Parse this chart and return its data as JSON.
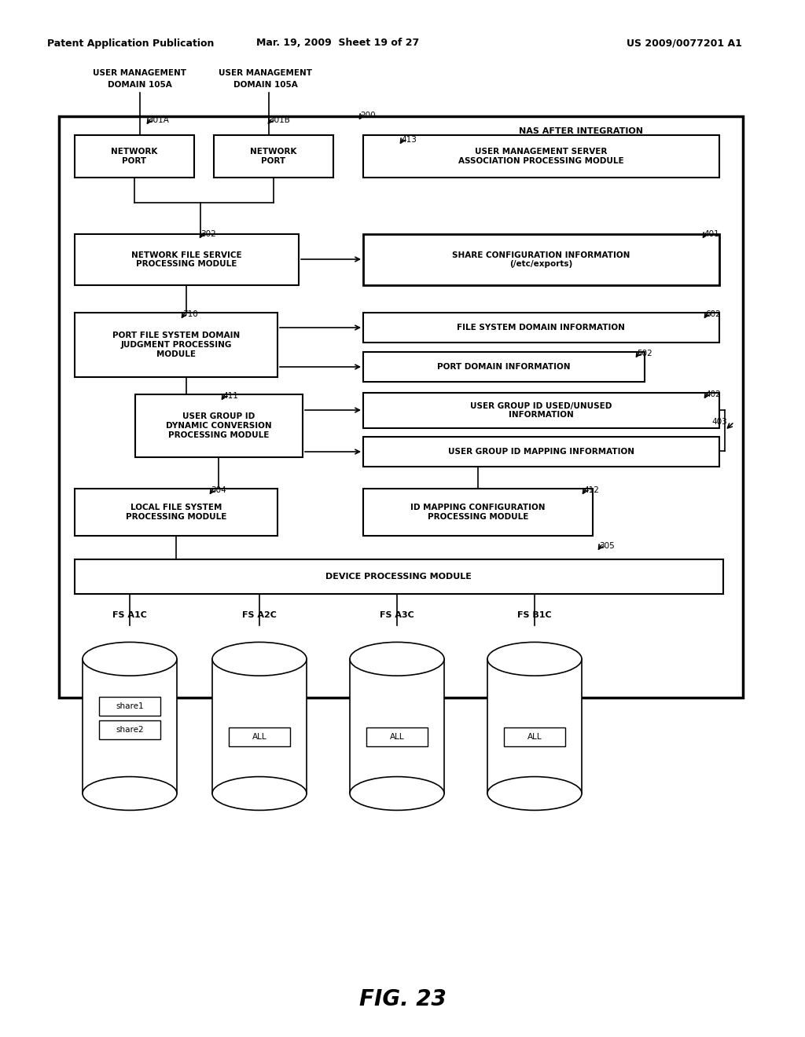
{
  "header_left": "Patent Application Publication",
  "header_mid": "Mar. 19, 2009  Sheet 19 of 27",
  "header_right": "US 2009/0077201 A1",
  "figure_label": "FIG. 23",
  "bg_color": "#ffffff",
  "line_color": "#000000",
  "text_color": "#000000"
}
